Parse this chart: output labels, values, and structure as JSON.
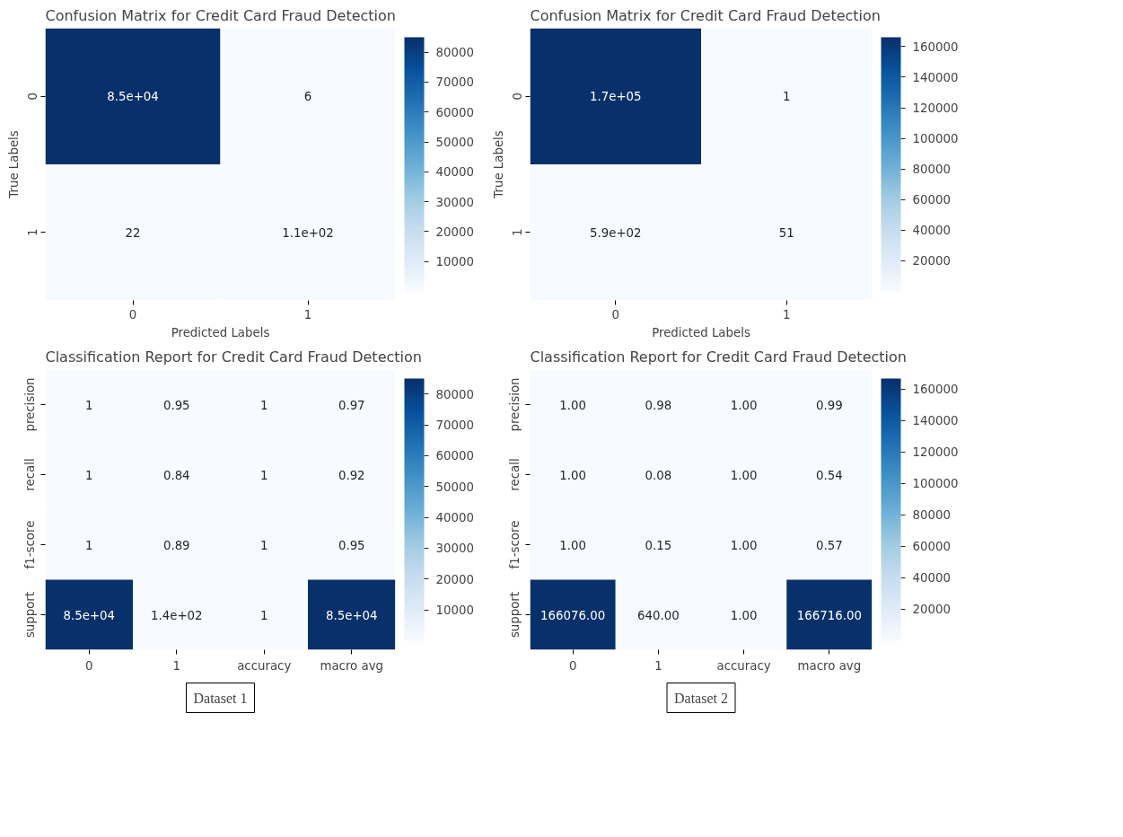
{
  "chart_data": [
    {
      "type": "heatmap",
      "title": "Confusion Matrix for Credit Card Fraud Detection",
      "xlabel": "Predicted Labels",
      "ylabel": "True Labels",
      "categories": [
        "0",
        "1"
      ],
      "y_categories": [
        "0",
        "1"
      ],
      "cells": [
        [
          85000,
          6
        ],
        [
          22,
          110
        ]
      ],
      "cell_labels": [
        [
          "8.5e+04",
          "6"
        ],
        [
          "22",
          "1.1e+02"
        ]
      ],
      "clim": [
        6,
        85000
      ],
      "cticks": [
        10000,
        20000,
        30000,
        40000,
        50000,
        60000,
        70000,
        80000
      ]
    },
    {
      "type": "heatmap",
      "title": "Confusion Matrix for Credit Card Fraud Detection",
      "xlabel": "Predicted Labels",
      "ylabel": "True Labels",
      "categories": [
        "0",
        "1"
      ],
      "y_categories": [
        "0",
        "1"
      ],
      "cells": [
        [
          166075,
          1
        ],
        [
          589,
          51
        ]
      ],
      "cell_labels": [
        [
          "1.7e+05",
          "1"
        ],
        [
          "5.9e+02",
          "51"
        ]
      ],
      "clim": [
        1,
        166075
      ],
      "cticks": [
        20000,
        40000,
        60000,
        80000,
        100000,
        120000,
        140000,
        160000
      ]
    },
    {
      "type": "heatmap",
      "title": "Classification Report for Credit Card Fraud Detection",
      "categories": [
        "0",
        "1",
        "accuracy",
        "macro avg"
      ],
      "y_categories": [
        "precision",
        "recall",
        "f1-score",
        "support"
      ],
      "cells": [
        [
          1,
          0.95,
          1,
          0.97
        ],
        [
          1,
          0.84,
          1,
          0.92
        ],
        [
          1,
          0.89,
          1,
          0.95
        ],
        [
          85000,
          140,
          1,
          85000
        ]
      ],
      "cell_labels": [
        [
          "1",
          "0.95",
          "1",
          "0.97"
        ],
        [
          "1",
          "0.84",
          "1",
          "0.92"
        ],
        [
          "1",
          "0.89",
          "1",
          "0.95"
        ],
        [
          "8.5e+04",
          "1.4e+02",
          "1",
          "8.5e+04"
        ]
      ],
      "clim": [
        0.84,
        85000
      ],
      "cticks": [
        10000,
        20000,
        30000,
        40000,
        50000,
        60000,
        70000,
        80000
      ],
      "annotations": [
        "Dataset 1"
      ]
    },
    {
      "type": "heatmap",
      "title": "Classification Report for Credit Card Fraud Detection",
      "categories": [
        "0",
        "1",
        "accuracy",
        "macro avg"
      ],
      "y_categories": [
        "precision",
        "recall",
        "f1-score",
        "support"
      ],
      "cells": [
        [
          1.0,
          0.98,
          1.0,
          0.99
        ],
        [
          1.0,
          0.08,
          1.0,
          0.54
        ],
        [
          1.0,
          0.15,
          1.0,
          0.57
        ],
        [
          166076,
          640,
          1.0,
          166716
        ]
      ],
      "cell_labels": [
        [
          "1.00",
          "0.98",
          "1.00",
          "0.99"
        ],
        [
          "1.00",
          "0.08",
          "1.00",
          "0.54"
        ],
        [
          "1.00",
          "0.15",
          "1.00",
          "0.57"
        ],
        [
          "166076.00",
          "640.00",
          "1.00",
          "166716.00"
        ]
      ],
      "clim": [
        0.08,
        166716
      ],
      "cticks": [
        20000,
        40000,
        60000,
        80000,
        100000,
        120000,
        140000,
        160000
      ],
      "annotations": [
        "Dataset 2"
      ]
    }
  ]
}
